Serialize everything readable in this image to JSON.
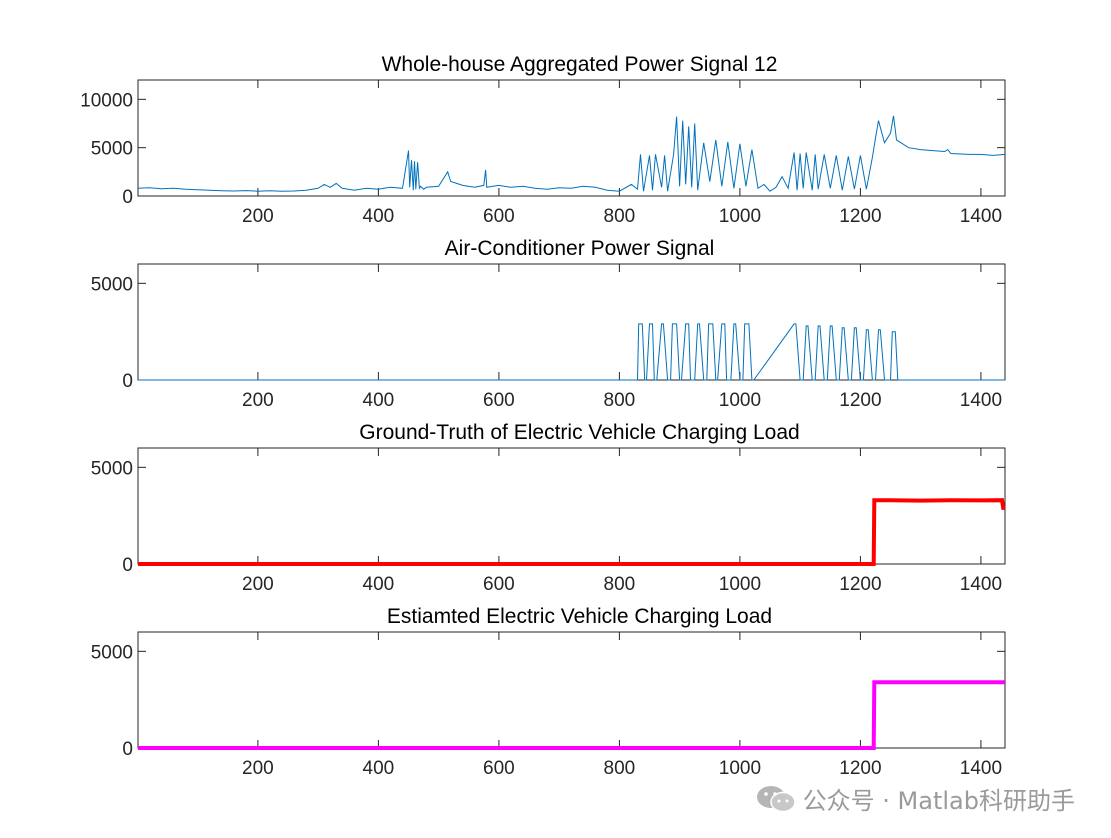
{
  "chart_data": [
    {
      "type": "line",
      "title": "Whole-house Aggregated Power Signal 12",
      "xlim": [
        1,
        1440
      ],
      "ylim": [
        0,
        12000
      ],
      "yticks": [
        0,
        5000,
        10000
      ],
      "xticks": [
        200,
        400,
        600,
        800,
        1000,
        1200,
        1400
      ],
      "color": "#0072BD",
      "line_width": 1,
      "series": [
        {
          "name": "",
          "x": [
            1,
            20,
            40,
            60,
            80,
            100,
            120,
            140,
            160,
            180,
            200,
            220,
            240,
            260,
            280,
            300,
            310,
            320,
            330,
            340,
            350,
            360,
            380,
            400,
            420,
            440,
            450,
            452,
            455,
            458,
            460,
            462,
            465,
            468,
            470,
            475,
            480,
            500,
            515,
            520,
            530,
            540,
            560,
            575,
            578,
            580,
            590,
            600,
            620,
            640,
            660,
            680,
            700,
            720,
            740,
            760,
            780,
            800,
            820,
            830,
            835,
            840,
            850,
            855,
            860,
            870,
            875,
            880,
            890,
            895,
            900,
            905,
            910,
            915,
            920,
            925,
            930,
            940,
            950,
            960,
            970,
            980,
            990,
            1000,
            1010,
            1020,
            1030,
            1040,
            1050,
            1060,
            1070,
            1080,
            1090,
            1095,
            1100,
            1105,
            1110,
            1120,
            1125,
            1130,
            1140,
            1150,
            1160,
            1170,
            1180,
            1190,
            1200,
            1210,
            1220,
            1225,
            1230,
            1240,
            1250,
            1255,
            1260,
            1280,
            1300,
            1320,
            1340,
            1345,
            1350,
            1380,
            1400,
            1420,
            1440
          ],
          "values": [
            800,
            850,
            750,
            800,
            700,
            650,
            600,
            550,
            520,
            560,
            500,
            550,
            500,
            520,
            600,
            800,
            1200,
            900,
            1300,
            800,
            700,
            600,
            800,
            700,
            900,
            800,
            4700,
            900,
            3700,
            600,
            3600,
            700,
            3500,
            800,
            1000,
            700,
            900,
            1000,
            2500,
            1500,
            1300,
            1100,
            900,
            1100,
            2700,
            900,
            1000,
            1100,
            900,
            1000,
            800,
            700,
            850,
            800,
            1000,
            900,
            600,
            500,
            1200,
            700,
            4300,
            500,
            4200,
            600,
            4300,
            900,
            4200,
            500,
            4300,
            8200,
            1000,
            7800,
            1200,
            7200,
            900,
            7500,
            600,
            5500,
            1500,
            5800,
            1000,
            5600,
            800,
            5400,
            1000,
            4800,
            800,
            1200,
            500,
            900,
            2000,
            800,
            4500,
            600,
            4400,
            800,
            4500,
            600,
            4300,
            700,
            4300,
            800,
            4200,
            600,
            4100,
            700,
            4200,
            700,
            4000,
            6000,
            7800,
            5500,
            6500,
            8300,
            5800,
            5000,
            4800,
            4700,
            4600,
            4800,
            4400,
            4300,
            4300,
            4200,
            4300
          ]
        }
      ]
    },
    {
      "type": "line",
      "title": "Air-Conditioner Power Signal",
      "xlim": [
        1,
        1440
      ],
      "ylim": [
        0,
        6000
      ],
      "yticks": [
        0,
        5000
      ],
      "xticks": [
        200,
        400,
        600,
        800,
        1000,
        1200,
        1400
      ],
      "color": "#0072BD",
      "line_width": 1,
      "series": [
        {
          "name": "",
          "x": [
            1,
            830,
            832,
            838,
            842,
            845,
            850,
            855,
            858,
            862,
            870,
            873,
            880,
            885,
            888,
            895,
            900,
            903,
            910,
            915,
            918,
            925,
            930,
            933,
            940,
            945,
            948,
            955,
            960,
            963,
            970,
            975,
            978,
            985,
            990,
            993,
            1000,
            1005,
            1008,
            1015,
            1020,
            1023,
            1090,
            1093,
            1100,
            1105,
            1110,
            1113,
            1120,
            1125,
            1130,
            1133,
            1140,
            1145,
            1150,
            1153,
            1160,
            1165,
            1170,
            1173,
            1180,
            1185,
            1190,
            1193,
            1200,
            1205,
            1210,
            1213,
            1220,
            1225,
            1230,
            1233,
            1240,
            1250,
            1253,
            1258,
            1262,
            1440
          ],
          "values": [
            0,
            0,
            2900,
            2900,
            0,
            0,
            2900,
            2900,
            0,
            0,
            2900,
            2900,
            0,
            0,
            2900,
            2900,
            0,
            0,
            2900,
            2900,
            0,
            0,
            2900,
            2900,
            0,
            0,
            2900,
            2900,
            0,
            0,
            2900,
            2900,
            0,
            0,
            2900,
            2900,
            0,
            0,
            2900,
            2900,
            0,
            0,
            2900,
            2900,
            0,
            0,
            2800,
            2800,
            0,
            0,
            2800,
            2800,
            0,
            0,
            2800,
            2800,
            0,
            0,
            2700,
            2700,
            0,
            0,
            2700,
            2700,
            0,
            0,
            2600,
            2600,
            0,
            0,
            2600,
            2600,
            0,
            0,
            2500,
            2500,
            0,
            0
          ]
        }
      ]
    },
    {
      "type": "line",
      "title": "Ground-Truth of Electric Vehicle Charging Load",
      "xlim": [
        1,
        1440
      ],
      "ylim": [
        0,
        6000
      ],
      "yticks": [
        0,
        5000
      ],
      "xticks": [
        200,
        400,
        600,
        800,
        1000,
        1200,
        1400
      ],
      "color": "#FF0000",
      "line_width": 4,
      "series": [
        {
          "name": "",
          "x": [
            1,
            1222,
            1223,
            1250,
            1300,
            1350,
            1400,
            1435,
            1437,
            1440
          ],
          "values": [
            0,
            0,
            3300,
            3300,
            3280,
            3300,
            3290,
            3300,
            2900,
            2900
          ]
        }
      ]
    },
    {
      "type": "line",
      "title": "Estiamted Electric Vehicle Charging Load",
      "xlim": [
        1,
        1440
      ],
      "ylim": [
        0,
        6000
      ],
      "yticks": [
        0,
        5000
      ],
      "xticks": [
        200,
        400,
        600,
        800,
        1000,
        1200,
        1400
      ],
      "color": "#FF00FF",
      "line_width": 4,
      "series": [
        {
          "name": "",
          "x": [
            1,
            1222,
            1223,
            1440
          ],
          "values": [
            0,
            0,
            3400,
            3400
          ]
        }
      ]
    }
  ],
  "watermark": {
    "text": "公众号 · Matlab科研助手",
    "icon": "wechat-icon"
  }
}
